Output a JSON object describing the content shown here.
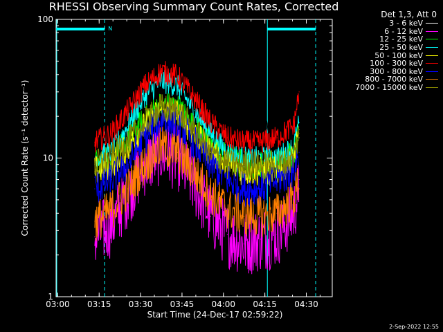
{
  "chart_data": {
    "type": "line",
    "title": "RHESSI Observing Summary Count Rates, Corrected",
    "xlabel": "Start Time (24-Dec-17 02:59:22)",
    "ylabel": "Corrected Count Rate (s⁻¹ detector⁻¹)",
    "yscale": "log",
    "ylim": [
      1,
      100
    ],
    "xlim_minutes": [
      0,
      100
    ],
    "xticks": [
      "03:00",
      "03:15",
      "03:30",
      "03:45",
      "04:00",
      "04:15",
      "04:30"
    ],
    "yticks": [
      "1",
      "10",
      "100"
    ],
    "legend_title": "Det 1,3, Att 0",
    "legend_placement": "right, outside plot",
    "n_marker": "N",
    "series": [
      {
        "name": "3 - 6 keV",
        "color": "#000000",
        "x": [
          14,
          20,
          26,
          32,
          38,
          44,
          50,
          56,
          62,
          68,
          74,
          80,
          86,
          88
        ],
        "values": [
          17,
          17,
          17,
          18,
          18,
          18,
          17,
          17,
          17,
          17,
          17,
          17,
          19,
          22
        ]
      },
      {
        "name": "6 - 12 keV",
        "color": "#ff00ff",
        "x": [
          14,
          20,
          26,
          32,
          38,
          44,
          50,
          56,
          62,
          68,
          74,
          80,
          86,
          88
        ],
        "values": [
          2.7,
          3.3,
          5.5,
          9,
          11,
          10,
          6.5,
          3.8,
          2.8,
          2.4,
          2.6,
          2.8,
          4,
          6
        ]
      },
      {
        "name": "12 - 25 keV",
        "color": "#00ff00",
        "x": [
          14,
          20,
          26,
          32,
          38,
          44,
          50,
          56,
          62,
          68,
          74,
          80,
          86,
          88
        ],
        "values": [
          9,
          10,
          13,
          19,
          24,
          23,
          17,
          12,
          10,
          9,
          9,
          9,
          11,
          16
        ]
      },
      {
        "name": "25 - 50 keV",
        "color": "#00ffff",
        "x": [
          14,
          20,
          26,
          32,
          38,
          44,
          50,
          56,
          62,
          68,
          74,
          80,
          86,
          88
        ],
        "values": [
          10,
          11,
          17,
          28,
          36,
          33,
          22,
          15,
          11,
          10,
          10,
          10,
          12,
          18
        ]
      },
      {
        "name": "50 - 100 keV",
        "color": "#ffff00",
        "x": [
          14,
          20,
          26,
          32,
          38,
          44,
          50,
          56,
          62,
          68,
          74,
          80,
          86,
          88
        ],
        "values": [
          8,
          9,
          12,
          17,
          22,
          21,
          15,
          11,
          9,
          8,
          8,
          8,
          10,
          14
        ]
      },
      {
        "name": "100 - 300 keV",
        "color": "#ff0000",
        "x": [
          14,
          20,
          26,
          32,
          38,
          44,
          50,
          56,
          62,
          68,
          74,
          80,
          86,
          88
        ],
        "values": [
          13,
          15,
          22,
          33,
          42,
          39,
          27,
          18,
          14,
          13,
          13,
          14,
          17,
          30
        ]
      },
      {
        "name": "300 - 800 keV",
        "color": "#0000ff",
        "x": [
          14,
          20,
          26,
          32,
          38,
          44,
          50,
          56,
          62,
          68,
          74,
          80,
          86,
          88
        ],
        "values": [
          6,
          7,
          9,
          14,
          19,
          18,
          13,
          9,
          7,
          6,
          6,
          7,
          8,
          11
        ]
      },
      {
        "name": "800 - 7000 keV",
        "color": "#ff8000",
        "x": [
          14,
          20,
          26,
          32,
          38,
          44,
          50,
          56,
          62,
          68,
          74,
          80,
          86,
          88
        ],
        "values": [
          3.5,
          4.2,
          6,
          9,
          12,
          11,
          8,
          5.5,
          4.3,
          3.8,
          3.8,
          4,
          5,
          7
        ]
      },
      {
        "name": "7000 - 15000 keV",
        "color": "#808000",
        "x": [
          14,
          20,
          26,
          32,
          38,
          44,
          50,
          56,
          62,
          68,
          74,
          80,
          86,
          88
        ],
        "values": [
          9,
          10,
          13,
          18,
          23,
          22,
          16,
          11,
          9,
          9,
          9,
          9,
          10,
          15
        ]
      }
    ]
  },
  "footer": {
    "date": "2-Sep-2022 12:55"
  }
}
